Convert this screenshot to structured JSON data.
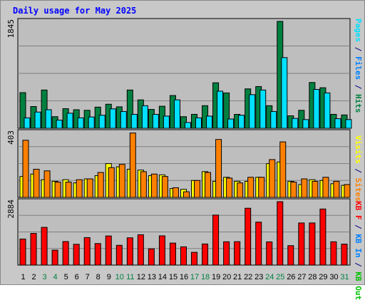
{
  "title": "Daily usage for May 2025",
  "colors": {
    "hits": "#008040",
    "files": "#00c0ff",
    "pages": "#00e0ff",
    "visits": "#ffff00",
    "sites": "#ff8000",
    "kb_in": "#0080ff",
    "kb_out": "#00c000",
    "kb_f": "#ff0000",
    "weekend": "#008040",
    "weekday": "#000000",
    "plot_bg": "#bebebe",
    "grid": "#808080"
  },
  "legends": {
    "top": [
      {
        "text": "Pages",
        "color": "#00e0ff"
      },
      {
        "text": " / ",
        "color": "#000080"
      },
      {
        "text": "Files",
        "color": "#0080ff"
      },
      {
        "text": " / ",
        "color": "#000080"
      },
      {
        "text": "Hits",
        "color": "#008040"
      }
    ],
    "middle": [
      {
        "text": "Visits",
        "color": "#ffff00"
      },
      {
        "text": " / ",
        "color": "#000080"
      },
      {
        "text": "Sites",
        "color": "#ff8000"
      }
    ],
    "bottom": [
      {
        "text": "KB F",
        "color": "#ff0000"
      },
      {
        "text": " / ",
        "color": "#000080"
      },
      {
        "text": "KB In",
        "color": "#0080ff"
      },
      {
        "text": " / ",
        "color": "#000080"
      },
      {
        "text": "KB Out",
        "color": "#00c000"
      }
    ]
  },
  "chart_data": {
    "type": "bar",
    "days": [
      1,
      2,
      3,
      4,
      5,
      6,
      7,
      8,
      9,
      10,
      11,
      12,
      13,
      14,
      15,
      16,
      17,
      18,
      19,
      20,
      21,
      22,
      23,
      24,
      25,
      26,
      27,
      28,
      29,
      30,
      31
    ],
    "weekend_days": [
      3,
      4,
      10,
      11,
      17,
      18,
      24,
      25,
      31
    ],
    "panels": [
      {
        "id": "hits",
        "ymax_label": "1845",
        "ymax": 1845,
        "series": [
          {
            "name": "Hits",
            "values": [
              615,
              375,
              660,
              200,
              338,
              320,
              310,
              365,
              415,
              370,
              660,
              490,
              325,
              380,
              565,
              200,
              240,
              390,
              785,
              610,
              240,
              680,
              720,
              390,
              1845,
              215,
              310,
              790,
              700,
              240,
              230
            ]
          },
          {
            "name": "Files",
            "values": [
              180,
              280,
              320,
              140,
              260,
              180,
              195,
              225,
              335,
              290,
              240,
              390,
              240,
              210,
              490,
              100,
              180,
              210,
              640,
              160,
              225,
              580,
              660,
              290,
              1220,
              170,
              150,
              670,
              610,
              165,
              150
            ]
          }
        ]
      },
      {
        "id": "sites",
        "ymax_label": "403",
        "ymax": 403,
        "series": [
          {
            "name": "Visits",
            "values": [
              130,
              145,
              110,
              100,
              110,
              90,
              115,
              135,
              210,
              190,
              175,
              170,
              135,
              140,
              55,
              50,
              105,
              160,
              100,
              125,
              100,
              100,
              125,
              210,
              220,
              100,
              80,
              110,
              105,
              85,
              75
            ]
          },
          {
            "name": "Sites",
            "values": [
              355,
              175,
              165,
              95,
              95,
              110,
              115,
              155,
              185,
              205,
              400,
              160,
              145,
              130,
              60,
              35,
              105,
              155,
              360,
              120,
              90,
              125,
              125,
              235,
              345,
              95,
              115,
              100,
              125,
              100,
              80
            ]
          }
        ]
      },
      {
        "id": "kbytes",
        "ymax_label": "2884",
        "ymax": 2884,
        "series": [
          {
            "name": "KB F",
            "values": [
              1185,
              1440,
              1715,
              680,
              1070,
              945,
              1250,
              980,
              1325,
              900,
              1240,
              1380,
              740,
              1330,
              1000,
              830,
              580,
              960,
              2275,
              1060,
              1065,
              2585,
              1955,
              1055,
              2884,
              885,
              1915,
              1915,
              2550,
              1060,
              955
            ]
          }
        ]
      }
    ]
  }
}
